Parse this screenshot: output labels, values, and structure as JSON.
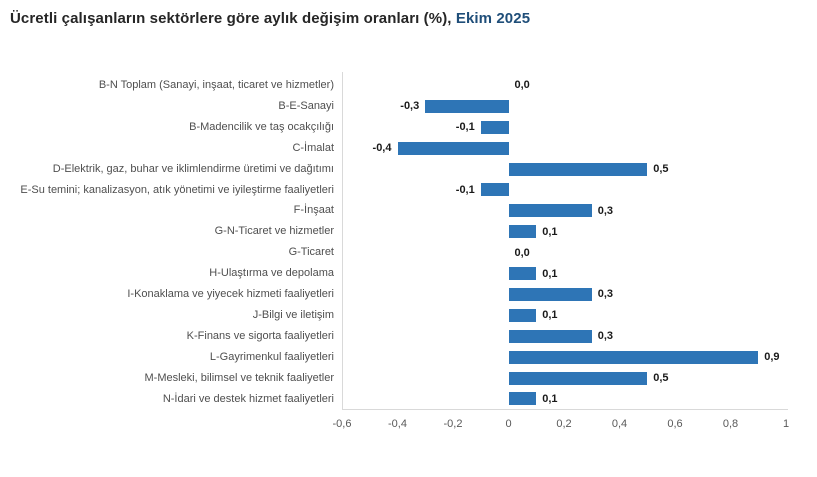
{
  "title": {
    "main": "Ücretli çalışanların sektörlere göre aylık değişim oranları (%),",
    "period": " Ekim 2025"
  },
  "colors": {
    "bar": "#2e75b6",
    "title_text": "#262626",
    "period_text": "#1f4e79",
    "axis_line": "#d9d9d9",
    "tick_text": "#595959",
    "category_text": "#4f4f4f",
    "value_text": "#1a1a1a",
    "background": "#ffffff"
  },
  "chart_data": {
    "type": "bar",
    "orientation": "horizontal",
    "title": "Ücretli çalışanların sektörlere göre aylık değişim oranları (%), Ekim 2025",
    "categories": [
      "B-N Toplam (Sanayi, inşaat, ticaret ve hizmetler)",
      "B-E-Sanayi",
      "B-Madencilik ve taş ocakçılığı",
      "C-İmalat",
      "D-Elektrik, gaz, buhar ve iklimlendirme üretimi ve dağıtımı",
      "E-Su temini; kanalizasyon, atık yönetimi ve iyileştirme faaliyetleri",
      "F-İnşaat",
      "G-N-Ticaret ve hizmetler",
      "G-Ticaret",
      "H-Ulaştırma ve depolama",
      "I-Konaklama ve yiyecek hizmeti faaliyetleri",
      "J-Bilgi ve iletişim",
      "K-Finans ve sigorta faaliyetleri",
      "L-Gayrimenkul faaliyetleri",
      "M-Mesleki, bilimsel ve teknik faaliyetler",
      "N-İdari ve destek hizmet faaliyetleri"
    ],
    "values": [
      0.0,
      -0.3,
      -0.1,
      -0.4,
      0.5,
      -0.1,
      0.3,
      0.1,
      0.0,
      0.1,
      0.3,
      0.1,
      0.3,
      0.9,
      0.5,
      0.1
    ],
    "value_labels": [
      "0,0",
      "-0,3",
      "-0,1",
      "-0,4",
      "0,5",
      "-0,1",
      "0,3",
      "0,1",
      "0,0",
      "0,1",
      "0,3",
      "0,1",
      "0,3",
      "0,9",
      "0,5",
      "0,1"
    ],
    "xlim": [
      -0.6,
      1.0
    ],
    "x_ticks": [
      -0.6,
      -0.4,
      -0.2,
      0,
      0.2,
      0.4,
      0.6,
      0.8,
      1
    ],
    "x_tick_labels": [
      "-0,6",
      "-0,4",
      "-0,2",
      "0",
      "0,2",
      "0,4",
      "0,6",
      "0,8",
      "1"
    ],
    "xlabel": "",
    "ylabel": "",
    "grid": false,
    "legend": false
  }
}
